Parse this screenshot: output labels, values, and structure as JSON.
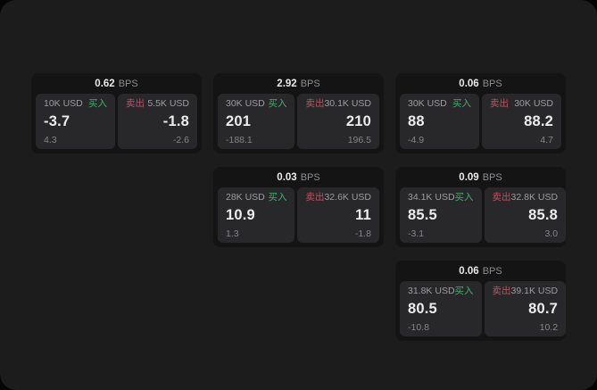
{
  "labels": {
    "bps": "BPS",
    "buy": "买入",
    "sell": "卖出"
  },
  "colors": {
    "window_bg": "#1c1c1d",
    "card_bg": "#141415",
    "panel_bg": "#28282a",
    "buy_green": "#43ad6c",
    "sell_red": "#bc5262",
    "text_primary": "#ececed",
    "text_muted": "#9d9da2",
    "text_dim": "#85858a"
  },
  "cards": [
    {
      "grid": {
        "row": 1,
        "col": 1
      },
      "bps": "0.62",
      "buy": {
        "size": "10K USD",
        "price": "-3.7",
        "delta": "4.3"
      },
      "sell": {
        "size": "5.5K USD",
        "price": "-1.8",
        "delta": "-2.6"
      }
    },
    {
      "grid": {
        "row": 1,
        "col": 2
      },
      "bps": "2.92",
      "buy": {
        "size": "30K USD",
        "price": "201",
        "delta": "-188.1"
      },
      "sell": {
        "size": "30.1K USD",
        "price": "210",
        "delta": "196.5"
      }
    },
    {
      "grid": {
        "row": 1,
        "col": 3
      },
      "bps": "0.06",
      "buy": {
        "size": "30K USD",
        "price": "88",
        "delta": "-4.9"
      },
      "sell": {
        "size": "30K USD",
        "price": "88.2",
        "delta": "4.7"
      }
    },
    {
      "grid": {
        "row": 2,
        "col": 2
      },
      "bps": "0.03",
      "buy": {
        "size": "28K USD",
        "price": "10.9",
        "delta": "1.3"
      },
      "sell": {
        "size": "32.6K USD",
        "price": "11",
        "delta": "-1.8"
      }
    },
    {
      "grid": {
        "row": 2,
        "col": 3
      },
      "bps": "0.09",
      "buy": {
        "size": "34.1K USD",
        "price": "85.5",
        "delta": "-3.1"
      },
      "sell": {
        "size": "32.8K USD",
        "price": "85.8",
        "delta": "3.0"
      }
    },
    {
      "grid": {
        "row": 3,
        "col": 3
      },
      "bps": "0.06",
      "buy": {
        "size": "31.8K USD",
        "price": "80.5",
        "delta": "-10.8"
      },
      "sell": {
        "size": "39.1K USD",
        "price": "80.7",
        "delta": "10.2"
      }
    }
  ]
}
